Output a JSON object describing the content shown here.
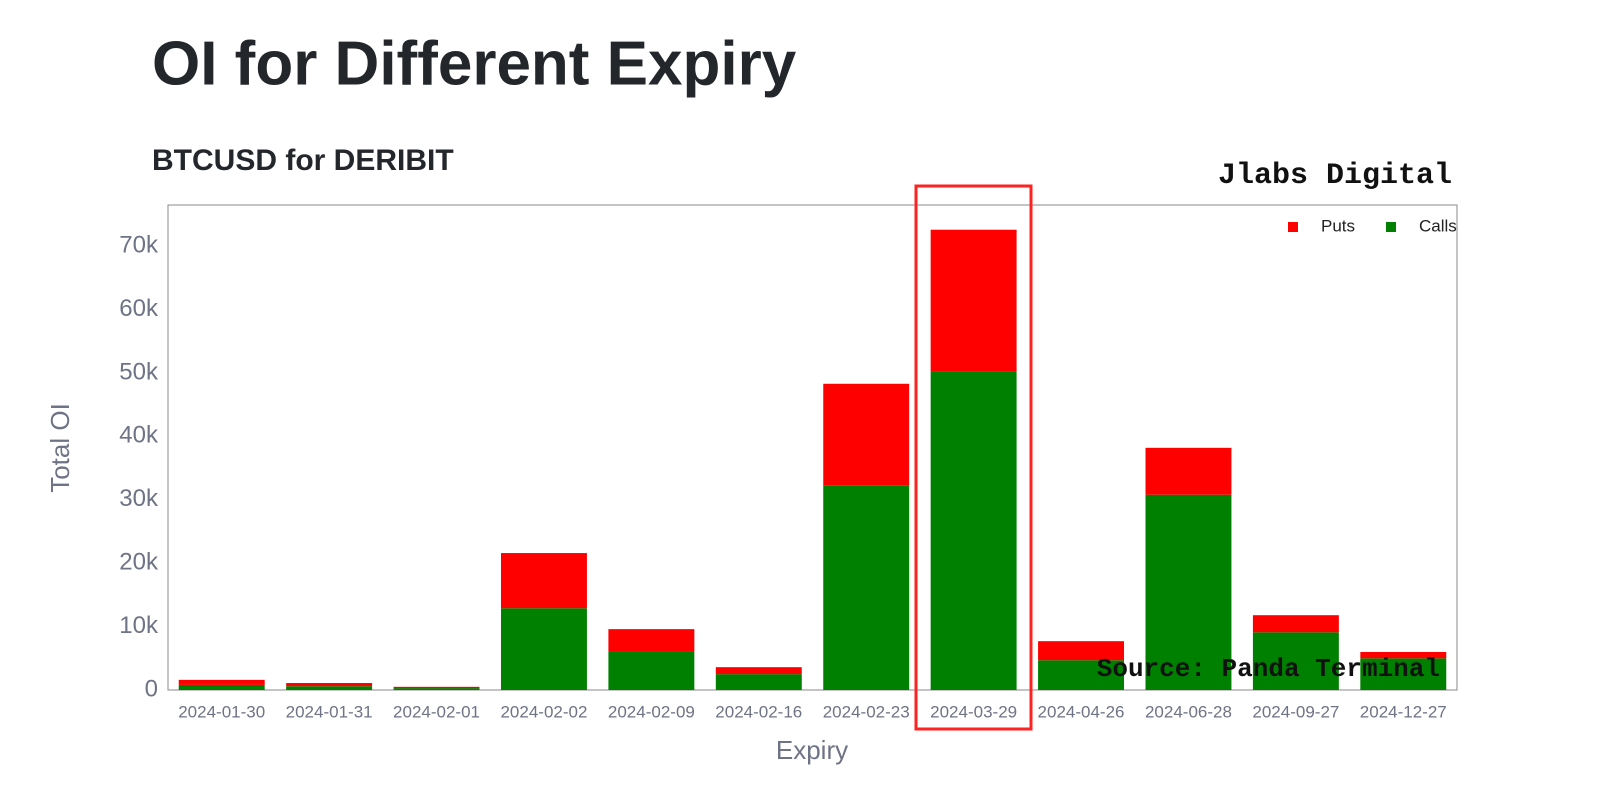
{
  "chart_data": {
    "type": "stacked_bar",
    "title": "OI for Different Expiry",
    "subtitle": "BTCUSD for DERIBIT",
    "watermark": "Jlabs Digital",
    "source": "Source: Panda Terminal",
    "x_label": "Expiry",
    "y_label": "Total OI",
    "categories": [
      "2024-01-30",
      "2024-01-31",
      "2024-02-01",
      "2024-02-02",
      "2024-02-09",
      "2024-02-16",
      "2024-02-23",
      "2024-03-29",
      "2024-04-26",
      "2024-06-28",
      "2024-09-27",
      "2024-12-27"
    ],
    "series": [
      {
        "name": "Calls",
        "color": "#008000",
        "values": [
          800,
          600,
          300,
          12900,
          6000,
          2500,
          32300,
          50300,
          4700,
          30800,
          9100,
          5000
        ]
      },
      {
        "name": "Puts",
        "color": "#ff0000",
        "values": [
          800,
          500,
          200,
          8700,
          3600,
          1100,
          16000,
          22300,
          3000,
          7400,
          2700,
          1000
        ]
      }
    ],
    "ylim": [
      0,
      76500
    ],
    "yticks": [
      0,
      {
        "value": 10000,
        "label": "10k"
      },
      {
        "value": 20000,
        "label": "20k"
      },
      {
        "value": 30000,
        "label": "30k"
      },
      {
        "value": 40000,
        "label": "40k"
      },
      {
        "value": 50000,
        "label": "50k"
      },
      {
        "value": 60000,
        "label": "60k"
      },
      {
        "value": 70000,
        "label": "70k"
      }
    ],
    "grid": false,
    "legend": "top-right"
  }
}
